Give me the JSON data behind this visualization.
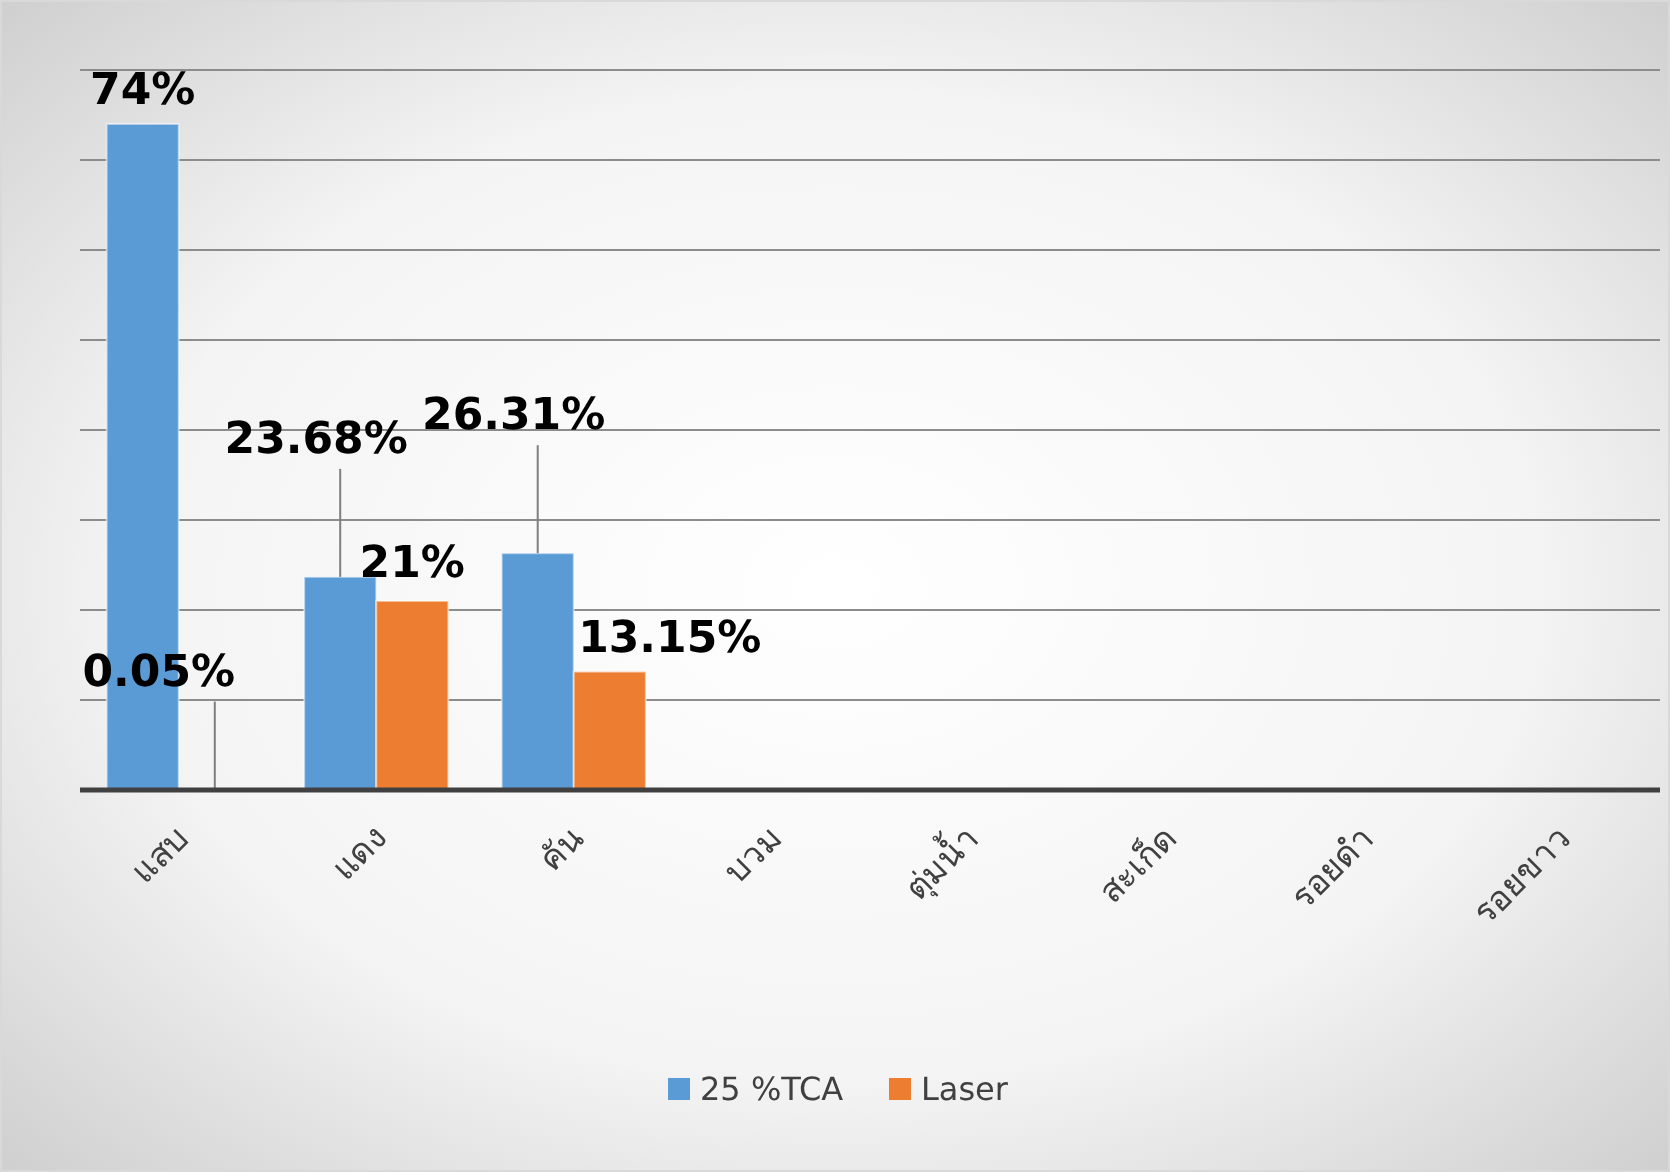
{
  "chart_data": {
    "type": "bar",
    "categories": [
      "แสบ",
      "แดง",
      "คัน",
      "บวม",
      "ตุ่มน้ำ",
      "สะเก็ด",
      "รอยดำ",
      "รอยขาว"
    ],
    "series": [
      {
        "name": "25 %TCA",
        "color": "#5b9bd5",
        "values": [
          74,
          23.68,
          26.31,
          null,
          null,
          null,
          null,
          null
        ],
        "value_labels": [
          "74%",
          "23.68%",
          "26.31%",
          null,
          null,
          null,
          null,
          null
        ]
      },
      {
        "name": "Laser",
        "color": "#ed7d31",
        "values": [
          0.05,
          21,
          13.15,
          null,
          null,
          null,
          null,
          null
        ],
        "value_labels": [
          "0.05%",
          "21%",
          "13.15%",
          null,
          null,
          null,
          null,
          null
        ]
      }
    ],
    "ylim": [
      0,
      80
    ],
    "yticks": [
      {
        "value": 0,
        "label": null
      },
      {
        "value": 10,
        "label": null
      },
      {
        "value": 20,
        "label": null
      },
      {
        "value": 30,
        "label": null
      },
      {
        "value": 40,
        "label": null
      },
      {
        "value": 50,
        "label": null
      },
      {
        "value": 60,
        "label": null
      },
      {
        "value": 70,
        "label": null
      },
      {
        "value": 80,
        "label": null
      }
    ],
    "grid": "y",
    "legend": "bottom"
  }
}
